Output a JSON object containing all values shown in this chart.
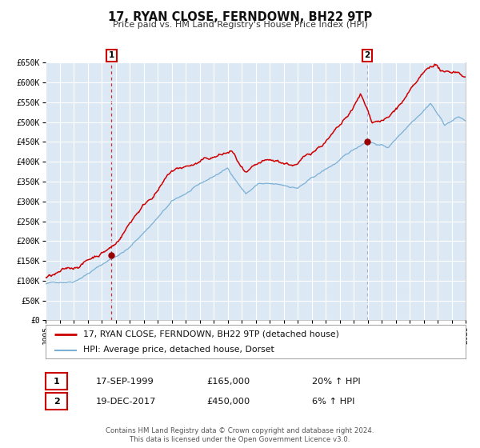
{
  "title": "17, RYAN CLOSE, FERNDOWN, BH22 9TP",
  "subtitle": "Price paid vs. HM Land Registry's House Price Index (HPI)",
  "legend_line1": "17, RYAN CLOSE, FERNDOWN, BH22 9TP (detached house)",
  "legend_line2": "HPI: Average price, detached house, Dorset",
  "table_rows": [
    {
      "num": "1",
      "date": "17-SEP-1999",
      "price": "£165,000",
      "hpi": "20% ↑ HPI"
    },
    {
      "num": "2",
      "date": "19-DEC-2017",
      "price": "£450,000",
      "hpi": "6% ↑ HPI"
    }
  ],
  "footer1": "Contains HM Land Registry data © Crown copyright and database right 2024.",
  "footer2": "This data is licensed under the Open Government Licence v3.0.",
  "hpi_color": "#7ab0d4",
  "price_color": "#cc0000",
  "dot_color": "#990000",
  "vline1_color": "#cc3333",
  "vline2_color": "#aaaacc",
  "box1_color": "#cc0000",
  "box2_color": "#cc0000",
  "bg_color": "#dce9f5",
  "grid_color": "#ffffff",
  "axis_bg": "#ffffff",
  "year_start": 1995.0,
  "year_end": 2025.0,
  "ylim_min": 0,
  "ylim_max": 650000,
  "yticks": [
    0,
    50000,
    100000,
    150000,
    200000,
    250000,
    300000,
    350000,
    400000,
    450000,
    500000,
    550000,
    600000,
    650000
  ],
  "ytick_labels": [
    "£0",
    "£50K",
    "£100K",
    "£150K",
    "£200K",
    "£250K",
    "£300K",
    "£350K",
    "£400K",
    "£450K",
    "£500K",
    "£550K",
    "£600K",
    "£650K"
  ],
  "sale1_year": 1999.708,
  "sale1_price": 165000,
  "sale2_year": 2017.962,
  "sale2_price": 450000,
  "vline1_year": 1999.708,
  "vline2_year": 2017.962
}
